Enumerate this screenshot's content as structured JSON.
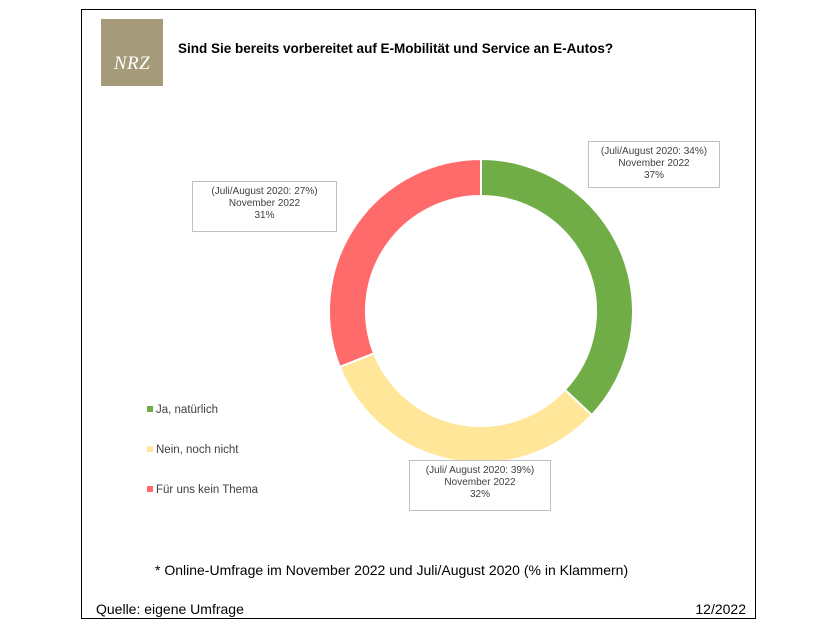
{
  "logo": {
    "text": "NRZ"
  },
  "footnote": "* Online-Umfrage im November 2022 und Juli/August 2020 (% in Klammern)",
  "source": "Quelle: eigene Umfrage",
  "date": "12/2022",
  "colors": {
    "ja": "#70ad47",
    "nein": "#ffe699",
    "kein": "#ff6b6b"
  },
  "chart_data": {
    "type": "pie",
    "title": "Sind Sie bereits vorbereitet auf E-Mobilität und Service an E-Autos?",
    "legend_position": "left",
    "series": [
      {
        "name": "Ja, natürlich",
        "value": 37,
        "previous": 34,
        "color": "#70ad47",
        "label_line1": "(Juli/August 2020: 34%)",
        "label_line2": "November 2022",
        "label_line3": "37%"
      },
      {
        "name": "Nein, noch nicht",
        "value": 32,
        "previous": 39,
        "color": "#ffe699",
        "label_line1": "(Juli/ August 2020: 39%)",
        "label_line2": "November 2022",
        "label_line3": "32%"
      },
      {
        "name": "Für uns kein Thema",
        "value": 31,
        "previous": 27,
        "color": "#ff6b6b",
        "label_line1": "(Juli/August 2020: 27%)",
        "label_line2": "November 2022",
        "label_line3": "31%"
      }
    ]
  }
}
